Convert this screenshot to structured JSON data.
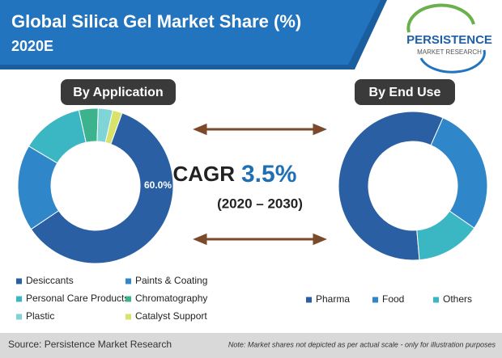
{
  "header": {
    "title": "Global Silica Gel Market Share (%)",
    "subtitle": "2020E"
  },
  "logo": {
    "name": "PERSISTENCE",
    "tagline": "MARKET RESEARCH"
  },
  "chart_data": [
    {
      "type": "pie",
      "title": "By Application",
      "categories": [
        "Desiccants",
        "Paints & Coating",
        "Personal Care Products",
        "Chromatography",
        "Plastic",
        "Catalyst Support"
      ],
      "values": [
        60,
        18,
        13,
        4,
        3,
        2
      ],
      "value_labels": [
        "60.0%",
        null,
        null,
        null,
        null,
        null
      ],
      "colors": [
        "#2a5fa4",
        "#2f87c9",
        "#3bb7c4",
        "#3db38d",
        "#7fd4d8",
        "#d7e36b"
      ]
    },
    {
      "type": "pie",
      "title": "By End Use",
      "categories": [
        "Pharma",
        "Food",
        "Others"
      ],
      "values": [
        58,
        28,
        14
      ],
      "colors": [
        "#2a5fa4",
        "#2f87c9",
        "#3bb7c4"
      ]
    }
  ],
  "cagr": {
    "label": "CAGR",
    "value": "3.5%",
    "period": "(2020 – 2030)"
  },
  "footer": {
    "source": "Source: Persistence Market Research",
    "note": "Note: Market shares not depicted as per actual scale - only for illustration purposes"
  }
}
